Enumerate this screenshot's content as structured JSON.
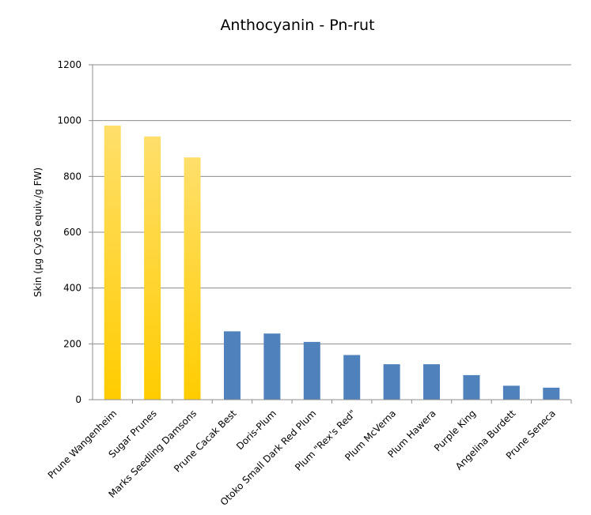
{
  "chart_data": {
    "type": "bar",
    "title": "Anthocyanin - Pn-rut",
    "xlabel": "",
    "ylabel": "Skin (µg Cy3G equiv./g FW)",
    "ylim": [
      0,
      1200
    ],
    "yticks": [
      0,
      200,
      400,
      600,
      800,
      1000,
      1200
    ],
    "grid": true,
    "categories": [
      "Prune Wangenheim",
      "Sugar Prunes",
      "Marks Seedling Damsons",
      "Prune Cacak Best",
      "Doris-Plum",
      "Otoko Small Dark Red Plum",
      "Plum \"Rex's Red\"",
      "Plum McVerna",
      "Plum Hawera",
      "Purple King",
      "Angelina Burdett",
      "Prune Seneca"
    ],
    "values": [
      982,
      943,
      868,
      245,
      237,
      207,
      160,
      127,
      127,
      88,
      50,
      43
    ],
    "bar_groups": [
      "yellow",
      "yellow",
      "yellow",
      "blue",
      "blue",
      "blue",
      "blue",
      "blue",
      "blue",
      "blue",
      "blue",
      "blue"
    ],
    "colors": {
      "yellow_top": "#ffdf6b",
      "yellow_bottom": "#ffcc00",
      "blue": "#4f81bd"
    }
  }
}
